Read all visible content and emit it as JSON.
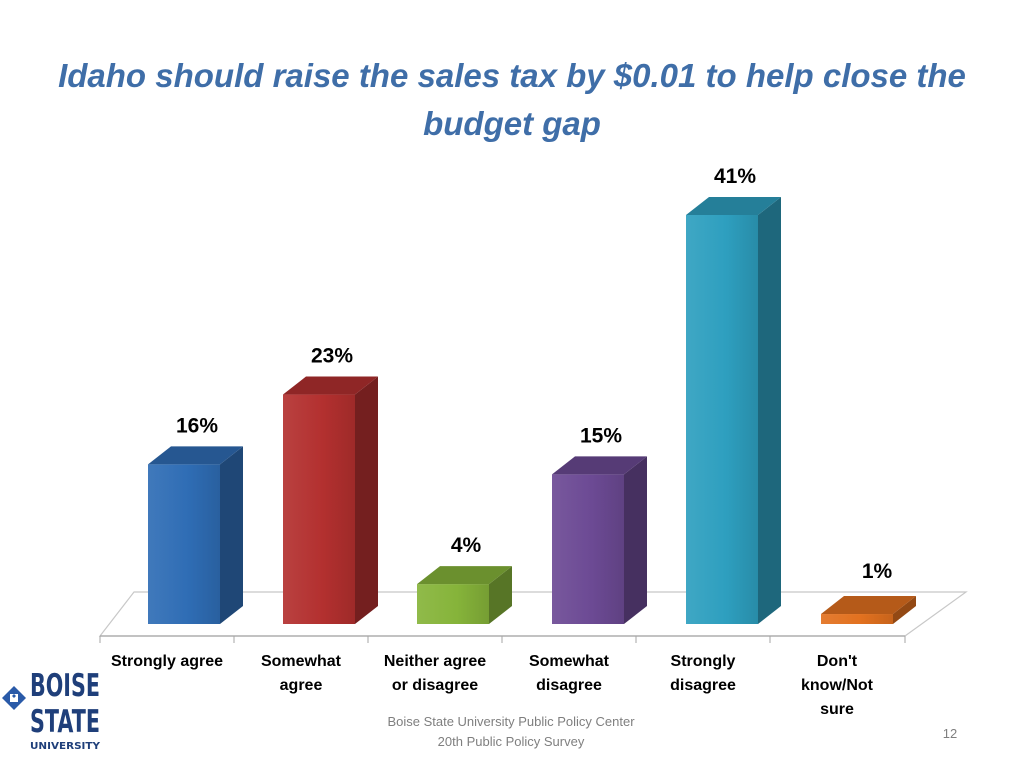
{
  "slide": {
    "title": "Idaho should raise the sales tax by $0.01 to help close the budget gap",
    "footer_line1": "Boise State University  Public Policy Center",
    "footer_line2": "20th Public Policy Survey",
    "page_number": "12",
    "logo": {
      "text_line1": "BOISE",
      "text_line2": "STATE",
      "text_line3": "UNIVERSITY",
      "color": "#1f3f7a"
    }
  },
  "chart_data": {
    "type": "bar",
    "title": "Idaho should raise the sales tax by $0.01 to help close the budget gap",
    "categories": [
      [
        "Strongly agree"
      ],
      [
        "Somewhat",
        "agree"
      ],
      [
        "Neither agree",
        "or disagree"
      ],
      [
        "Somewhat",
        "disagree"
      ],
      [
        "Strongly",
        "disagree"
      ],
      [
        "Don't",
        "know/Not",
        "sure"
      ]
    ],
    "values": [
      16,
      23,
      4,
      15,
      41,
      1
    ],
    "data_labels": [
      "16%",
      "23%",
      "4%",
      "15%",
      "41%",
      "1%"
    ],
    "colors": [
      "#2f6db5",
      "#b3302f",
      "#86b43a",
      "#6c4a94",
      "#2e9fbf",
      "#e2711f"
    ],
    "unit": "%",
    "ylim": [
      0,
      41
    ],
    "grid": false,
    "legend": "none",
    "style": "3d-column"
  }
}
